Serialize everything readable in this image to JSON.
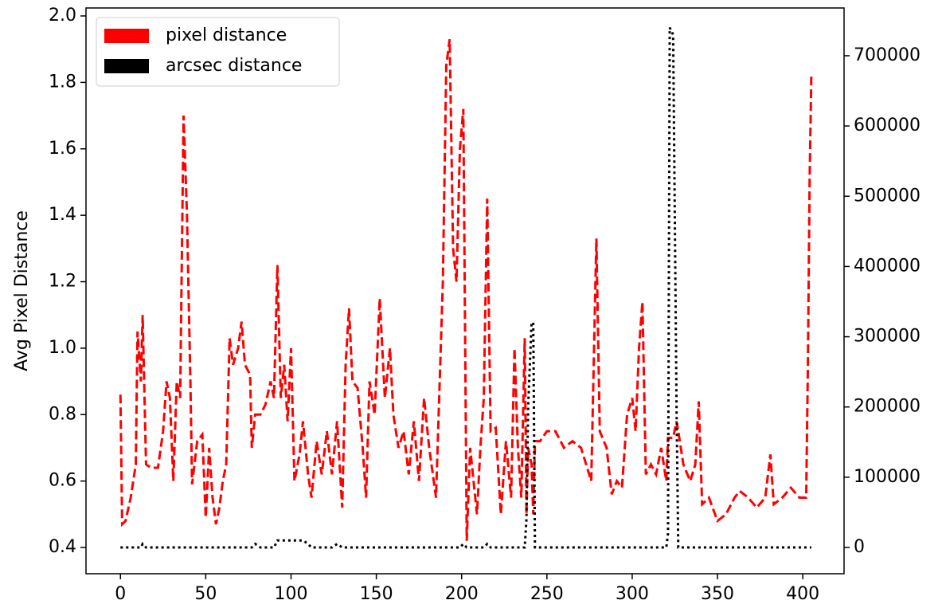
{
  "chart_data": {
    "type": "line",
    "ylabel": "Avg Pixel Distance",
    "x": [
      0,
      1,
      3,
      6,
      9,
      10,
      12,
      13,
      15,
      18,
      22,
      25,
      27,
      29,
      31,
      33,
      35,
      37,
      39,
      41,
      42,
      45,
      48,
      50,
      52,
      54,
      56,
      58,
      60,
      62,
      64,
      66,
      69,
      71,
      73,
      76,
      77,
      79,
      82,
      85,
      88,
      90,
      92,
      94,
      96,
      98,
      100,
      102,
      105,
      107,
      110,
      112,
      115,
      118,
      121,
      124,
      127,
      130,
      132,
      134,
      136,
      139,
      142,
      144,
      146,
      149,
      152,
      155,
      158,
      160,
      163,
      166,
      169,
      172,
      175,
      178,
      181,
      185,
      189,
      191,
      193,
      195,
      197,
      199,
      201,
      203,
      205,
      207,
      209,
      211,
      213,
      215,
      217,
      220,
      223,
      226,
      229,
      231,
      233,
      235,
      237,
      238,
      239,
      241,
      242,
      243,
      246,
      250,
      255,
      260,
      265,
      270,
      273,
      276,
      279,
      281,
      285,
      288,
      291,
      294,
      297,
      300,
      302,
      304,
      306,
      308,
      311,
      314,
      317,
      320,
      321,
      322,
      324,
      326,
      327,
      330,
      334,
      337,
      339,
      341,
      345,
      350,
      355,
      360,
      363,
      368,
      373,
      378,
      381,
      383,
      388,
      393,
      398,
      402,
      403,
      404,
      405
    ],
    "series": [
      {
        "name": "pixel distance",
        "color": "#ff0000",
        "axis": "y",
        "dash": "dashed",
        "values": [
          0.86,
          0.47,
          0.48,
          0.55,
          0.65,
          1.05,
          0.9,
          1.1,
          0.65,
          0.64,
          0.64,
          0.75,
          0.9,
          0.85,
          0.6,
          0.9,
          0.85,
          1.7,
          1.4,
          0.9,
          0.59,
          0.72,
          0.74,
          0.49,
          0.7,
          0.55,
          0.47,
          0.52,
          0.6,
          0.65,
          1.03,
          0.95,
          1.0,
          1.08,
          0.95,
          0.92,
          0.7,
          0.8,
          0.8,
          0.83,
          0.9,
          0.85,
          1.25,
          0.85,
          0.95,
          0.78,
          1.0,
          0.6,
          0.68,
          0.78,
          0.62,
          0.55,
          0.72,
          0.62,
          0.75,
          0.62,
          0.78,
          0.52,
          0.95,
          1.12,
          0.9,
          0.88,
          0.7,
          0.55,
          0.9,
          0.8,
          1.15,
          0.85,
          1.0,
          0.8,
          0.7,
          0.75,
          0.62,
          0.78,
          0.6,
          0.85,
          0.7,
          0.55,
          1.2,
          1.85,
          1.93,
          1.3,
          1.2,
          1.6,
          1.72,
          0.42,
          0.7,
          0.6,
          0.5,
          0.7,
          0.85,
          1.45,
          0.75,
          0.76,
          0.5,
          0.72,
          0.55,
          1.0,
          0.7,
          0.55,
          1.03,
          0.5,
          0.7,
          0.65,
          0.5,
          0.72,
          0.72,
          0.75,
          0.75,
          0.7,
          0.72,
          0.7,
          0.65,
          0.6,
          1.33,
          0.75,
          0.7,
          0.56,
          0.6,
          0.58,
          0.8,
          0.85,
          0.75,
          1.0,
          1.14,
          0.62,
          0.65,
          0.62,
          0.7,
          0.6,
          0.73,
          0.73,
          0.73,
          0.78,
          0.75,
          0.65,
          0.6,
          0.65,
          0.84,
          0.53,
          0.55,
          0.48,
          0.5,
          0.55,
          0.57,
          0.55,
          0.52,
          0.55,
          0.68,
          0.53,
          0.55,
          0.58,
          0.55,
          0.55,
          0.95,
          1.5,
          1.82
        ]
      },
      {
        "name": "arcsec distance",
        "color": "#000000",
        "axis": "y2",
        "dash": "dotted",
        "values": [
          0,
          0,
          0,
          0,
          0,
          0,
          0,
          5000,
          0,
          0,
          0,
          0,
          0,
          0,
          0,
          0,
          0,
          0,
          0,
          0,
          0,
          0,
          0,
          0,
          0,
          0,
          0,
          0,
          0,
          0,
          0,
          0,
          0,
          0,
          0,
          0,
          0,
          5000,
          0,
          0,
          0,
          0,
          10000,
          10000,
          10000,
          10000,
          10000,
          10000,
          10000,
          10000,
          5000,
          0,
          0,
          0,
          0,
          0,
          5000,
          0,
          0,
          0,
          0,
          0,
          0,
          0,
          0,
          0,
          0,
          0,
          0,
          0,
          0,
          0,
          0,
          0,
          0,
          0,
          0,
          0,
          0,
          0,
          0,
          0,
          0,
          0,
          5000,
          0,
          0,
          0,
          0,
          0,
          0,
          5000,
          0,
          0,
          0,
          0,
          0,
          0,
          0,
          0,
          0,
          40000,
          200000,
          320000,
          320000,
          0,
          0,
          0,
          0,
          0,
          0,
          0,
          0,
          0,
          0,
          0,
          0,
          0,
          0,
          0,
          0,
          0,
          0,
          0,
          0,
          0,
          0,
          0,
          0,
          0,
          20000,
          740000,
          730000,
          200000,
          0,
          0,
          0,
          0,
          0,
          0,
          0,
          0,
          0,
          0,
          0,
          0,
          0,
          0,
          0,
          0,
          0,
          0,
          0,
          0,
          0,
          0,
          0
        ]
      }
    ],
    "xlim": [
      -20.2,
      424.2
    ],
    "xticks": [
      0,
      50,
      100,
      150,
      200,
      250,
      300,
      350,
      400
    ],
    "ylim": [
      0.321,
      2.024
    ],
    "yticks": [
      0.4,
      0.6,
      0.8,
      {
        "value": 1.0,
        "label": "1.0"
      },
      1.2,
      1.4,
      1.6,
      1.8,
      {
        "value": 2.0,
        "label": "2.0"
      }
    ],
    "y2lim": [
      -37400,
      768000
    ],
    "y2ticks": [
      0,
      100000,
      200000,
      300000,
      400000,
      500000,
      600000,
      700000
    ],
    "legend": "upper left"
  }
}
